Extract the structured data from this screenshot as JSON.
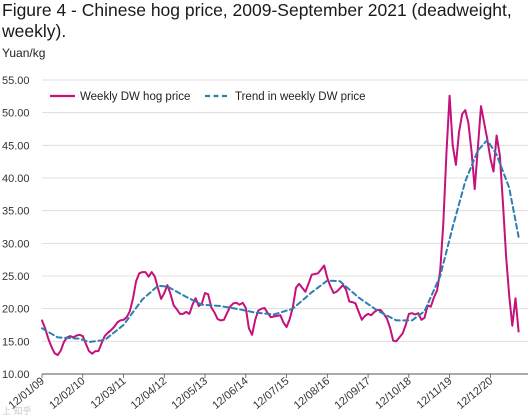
{
  "figure": {
    "title": "Figure 4 - Chinese hog price, 2009-September 2021 (deadweight, weekly).",
    "unit": "Yuan/kg",
    "watermark": "上 知乎"
  },
  "colors": {
    "price_line": "#c4117b",
    "trend_line": "#2e7fb0",
    "grid": "#d9d9d9",
    "axis": "#555555"
  },
  "chart_data": {
    "type": "line",
    "title": "Figure 4 - Chinese hog price, 2009-September 2021 (deadweight, weekly).",
    "ylabel": "Yuan/kg",
    "xlabel": "",
    "ylim": [
      10,
      55
    ],
    "xlim": [
      "2009-01",
      "2021-09"
    ],
    "yticks": [
      "10.00",
      "15.00",
      "20.00",
      "25.00",
      "30.00",
      "35.00",
      "40.00",
      "45.00",
      "50.00",
      "55.00"
    ],
    "xticks": [
      {
        "label": "12/01/09",
        "date": "2009-01"
      },
      {
        "label": "12/02/10",
        "date": "2010-02"
      },
      {
        "label": "12/03/11",
        "date": "2011-03"
      },
      {
        "label": "12/04/12",
        "date": "2012-04"
      },
      {
        "label": "12/05/13",
        "date": "2013-05"
      },
      {
        "label": "12/06/14",
        "date": "2014-06"
      },
      {
        "label": "12/07/15",
        "date": "2015-07"
      },
      {
        "label": "12/08/16",
        "date": "2016-08"
      },
      {
        "label": "12/09/17",
        "date": "2017-09"
      },
      {
        "label": "12/10/18",
        "date": "2018-10"
      },
      {
        "label": "12/11/19",
        "date": "2019-11"
      },
      {
        "label": "12/12/20",
        "date": "2020-12"
      }
    ],
    "grid": true,
    "legend": "top-left",
    "series": [
      {
        "name": "Weekly DW hog price",
        "style": "solid",
        "points": [
          [
            "2009-01",
            18.2
          ],
          [
            "2009-02",
            17.0
          ],
          [
            "2009-03",
            15.4
          ],
          [
            "2009-04",
            14.2
          ],
          [
            "2009-05",
            13.2
          ],
          [
            "2009-06",
            12.9
          ],
          [
            "2009-07",
            13.6
          ],
          [
            "2009-08",
            14.9
          ],
          [
            "2009-09",
            15.6
          ],
          [
            "2009-10",
            15.8
          ],
          [
            "2009-11",
            15.6
          ],
          [
            "2009-12",
            15.9
          ],
          [
            "2010-01",
            16.0
          ],
          [
            "2010-02",
            15.8
          ],
          [
            "2010-03",
            14.6
          ],
          [
            "2010-04",
            13.5
          ],
          [
            "2010-05",
            13.1
          ],
          [
            "2010-06",
            13.5
          ],
          [
            "2010-07",
            13.5
          ],
          [
            "2010-08",
            14.7
          ],
          [
            "2010-09",
            15.8
          ],
          [
            "2010-10",
            16.3
          ],
          [
            "2010-11",
            16.7
          ],
          [
            "2010-12",
            17.2
          ],
          [
            "2011-01",
            17.9
          ],
          [
            "2011-02",
            18.2
          ],
          [
            "2011-03",
            18.3
          ],
          [
            "2011-04",
            18.7
          ],
          [
            "2011-05",
            19.6
          ],
          [
            "2011-06",
            21.5
          ],
          [
            "2011-07",
            24.2
          ],
          [
            "2011-08",
            25.4
          ],
          [
            "2011-09",
            25.6
          ],
          [
            "2011-10",
            25.6
          ],
          [
            "2011-11",
            24.9
          ],
          [
            "2011-12",
            25.6
          ],
          [
            "2012-01",
            24.9
          ],
          [
            "2012-02",
            23.1
          ],
          [
            "2012-03",
            21.5
          ],
          [
            "2012-04",
            22.4
          ],
          [
            "2012-05",
            23.6
          ],
          [
            "2012-06",
            22.2
          ],
          [
            "2012-07",
            20.5
          ],
          [
            "2012-08",
            19.9
          ],
          [
            "2012-09",
            19.2
          ],
          [
            "2012-10",
            19.2
          ],
          [
            "2012-11",
            19.5
          ],
          [
            "2012-12",
            19.2
          ],
          [
            "2013-01",
            20.6
          ],
          [
            "2013-02",
            21.6
          ],
          [
            "2013-03",
            20.4
          ],
          [
            "2013-04",
            20.8
          ],
          [
            "2013-05",
            22.4
          ],
          [
            "2013-06",
            22.2
          ],
          [
            "2013-07",
            20.2
          ],
          [
            "2013-08",
            19.4
          ],
          [
            "2013-09",
            18.4
          ],
          [
            "2013-10",
            18.2
          ],
          [
            "2013-11",
            18.3
          ],
          [
            "2013-12",
            19.3
          ],
          [
            "2014-01",
            20.3
          ],
          [
            "2014-02",
            20.8
          ],
          [
            "2014-03",
            20.9
          ],
          [
            "2014-04",
            20.6
          ],
          [
            "2014-05",
            20.9
          ],
          [
            "2014-06",
            20.1
          ],
          [
            "2014-07",
            17.0
          ],
          [
            "2014-08",
            16.0
          ],
          [
            "2014-09",
            18.3
          ],
          [
            "2014-10",
            19.7
          ],
          [
            "2014-11",
            20.0
          ],
          [
            "2014-12",
            20.1
          ],
          [
            "2015-01",
            19.3
          ],
          [
            "2015-02",
            18.7
          ],
          [
            "2015-03",
            18.8
          ],
          [
            "2015-04",
            18.9
          ],
          [
            "2015-05",
            19.0
          ],
          [
            "2015-06",
            17.9
          ],
          [
            "2015-07",
            17.2
          ],
          [
            "2015-08",
            18.4
          ],
          [
            "2015-09",
            20.2
          ],
          [
            "2015-10",
            23.2
          ],
          [
            "2015-11",
            23.8
          ],
          [
            "2015-12",
            23.2
          ],
          [
            "2016-01",
            22.6
          ],
          [
            "2016-02",
            23.8
          ],
          [
            "2016-03",
            25.2
          ],
          [
            "2016-04",
            25.3
          ],
          [
            "2016-05",
            25.4
          ],
          [
            "2016-06",
            26.0
          ],
          [
            "2016-07",
            26.6
          ],
          [
            "2016-08",
            24.7
          ],
          [
            "2016-09",
            23.4
          ],
          [
            "2016-10",
            22.4
          ],
          [
            "2016-11",
            22.6
          ],
          [
            "2016-12",
            23.1
          ],
          [
            "2017-01",
            23.6
          ],
          [
            "2017-02",
            22.9
          ],
          [
            "2017-03",
            21.1
          ],
          [
            "2017-04",
            21.0
          ],
          [
            "2017-05",
            20.8
          ],
          [
            "2017-06",
            19.5
          ],
          [
            "2017-07",
            18.3
          ],
          [
            "2017-08",
            18.9
          ],
          [
            "2017-09",
            19.2
          ],
          [
            "2017-10",
            19.0
          ],
          [
            "2017-11",
            19.5
          ],
          [
            "2017-12",
            19.8
          ],
          [
            "2018-01",
            19.8
          ],
          [
            "2018-02",
            19.2
          ],
          [
            "2018-03",
            18.5
          ],
          [
            "2018-04",
            17.1
          ],
          [
            "2018-05",
            15.1
          ],
          [
            "2018-06",
            15.0
          ],
          [
            "2018-07",
            15.6
          ],
          [
            "2018-08",
            16.2
          ],
          [
            "2018-09",
            17.5
          ],
          [
            "2018-10",
            19.2
          ],
          [
            "2018-11",
            19.3
          ],
          [
            "2018-12",
            19.1
          ],
          [
            "2019-01",
            19.3
          ],
          [
            "2019-02",
            18.3
          ],
          [
            "2019-03",
            18.6
          ],
          [
            "2019-04",
            20.5
          ],
          [
            "2019-05",
            20.3
          ],
          [
            "2019-06",
            21.7
          ],
          [
            "2019-07",
            22.8
          ],
          [
            "2019-08",
            25.8
          ],
          [
            "2019-09",
            33.0
          ],
          [
            "2019-10",
            44.0
          ],
          [
            "2019-11",
            52.6
          ],
          [
            "2019-12",
            45.0
          ],
          [
            "2020-01",
            42.0
          ],
          [
            "2020-02",
            47.0
          ],
          [
            "2020-03",
            49.8
          ],
          [
            "2020-04",
            50.4
          ],
          [
            "2020-05",
            48.4
          ],
          [
            "2020-06",
            44.0
          ],
          [
            "2020-07",
            38.3
          ],
          [
            "2020-08",
            44.5
          ],
          [
            "2020-09",
            51.0
          ],
          [
            "2020-10",
            48.5
          ],
          [
            "2020-11",
            46.0
          ],
          [
            "2020-12",
            43.0
          ],
          [
            "2021-01",
            41.0
          ],
          [
            "2021-02",
            46.5
          ],
          [
            "2021-03",
            43.5
          ],
          [
            "2021-04",
            36.3
          ],
          [
            "2021-05",
            28.0
          ],
          [
            "2021-06",
            22.0
          ],
          [
            "2021-07",
            17.4
          ],
          [
            "2021-08",
            21.6
          ],
          [
            "2021-09",
            16.5
          ]
        ]
      },
      {
        "name": "Trend in weekly DW price",
        "style": "dashed",
        "points": [
          [
            "2009-01",
            17.0
          ],
          [
            "2009-06",
            15.6
          ],
          [
            "2010-01",
            15.4
          ],
          [
            "2010-04",
            14.9
          ],
          [
            "2010-09",
            15.2
          ],
          [
            "2011-03",
            17.5
          ],
          [
            "2011-09",
            21.4
          ],
          [
            "2012-02",
            23.5
          ],
          [
            "2012-05",
            23.4
          ],
          [
            "2012-11",
            21.8
          ],
          [
            "2013-04",
            20.6
          ],
          [
            "2013-10",
            20.4
          ],
          [
            "2014-04",
            19.9
          ],
          [
            "2014-09",
            19.4
          ],
          [
            "2015-03",
            19.1
          ],
          [
            "2015-09",
            20.0
          ],
          [
            "2016-03",
            22.5
          ],
          [
            "2016-08",
            24.3
          ],
          [
            "2016-12",
            24.2
          ],
          [
            "2017-06",
            21.7
          ],
          [
            "2017-12",
            19.7
          ],
          [
            "2018-06",
            18.2
          ],
          [
            "2018-11",
            18.2
          ],
          [
            "2019-03",
            19.6
          ],
          [
            "2019-08",
            25.0
          ],
          [
            "2019-12",
            32.5
          ],
          [
            "2020-04",
            39.5
          ],
          [
            "2020-08",
            44.2
          ],
          [
            "2020-11",
            45.8
          ],
          [
            "2021-02",
            43.6
          ],
          [
            "2021-06",
            38.5
          ],
          [
            "2021-09",
            31.0
          ]
        ]
      }
    ]
  }
}
